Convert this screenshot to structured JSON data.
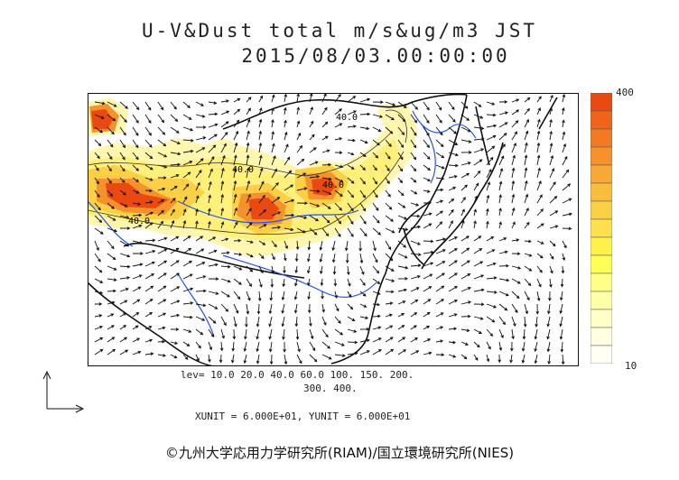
{
  "title": "U-V&Dust total m/s&ug/m3 JST",
  "datetime": "2015/08/03.00:00:00",
  "contour_labels": [
    "40.0",
    "40.0",
    "40.0",
    "40.0"
  ],
  "colorbar": {
    "max_label": "400",
    "min_label": "10",
    "colors": [
      "#e84a12",
      "#f0641a",
      "#f27a22",
      "#f5922c",
      "#f7a836",
      "#f9bd3e",
      "#fbd046",
      "#fde04e",
      "#fff04a",
      "#ffff55",
      "#ffff88",
      "#ffffaa",
      "#ffffc8",
      "#ffffe2",
      "#fffff4"
    ]
  },
  "legend_levels": "lev=  10.0  20.0  40.0  60.0  100.  150.  200.",
  "legend_levels_2": "300.  400.",
  "units_line": "XUNIT = 6.000E+01, YUNIT = 6.000E+01",
  "credit": "©九州大学応用力学研究所(RIAM)/国立環境研究所(NIES)"
}
